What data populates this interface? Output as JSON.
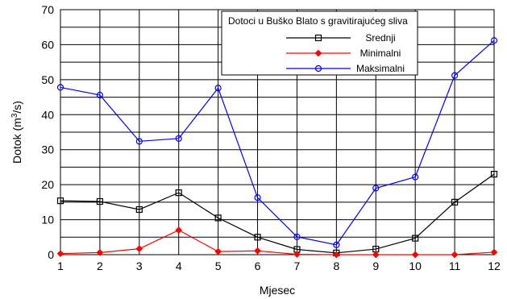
{
  "chart_data": {
    "type": "line",
    "title": "",
    "xlabel": "Mjesec",
    "ylabel_main": "Dotok (m",
    "ylabel_sup": "3",
    "ylabel_end": "/s)",
    "xlim": [
      1,
      12
    ],
    "ylim": [
      0,
      70
    ],
    "x": [
      1,
      2,
      3,
      4,
      5,
      6,
      7,
      8,
      9,
      10,
      11,
      12
    ],
    "x_ticks": [
      "1",
      "2",
      "3",
      "4",
      "5",
      "6",
      "7",
      "8",
      "9",
      "10",
      "11",
      "12"
    ],
    "y_ticks": [
      "0",
      "10",
      "20",
      "30",
      "40",
      "50",
      "60",
      "70"
    ],
    "grid": true,
    "legend": {
      "title": "Dotoci u Buško Blato s gravitirajućeg sliva",
      "placement": "top-right"
    },
    "series": [
      {
        "name": "Srednji",
        "color": "#000000",
        "marker": "square",
        "values": [
          15.4,
          15.2,
          12.9,
          17.7,
          10.5,
          5.0,
          1.5,
          0.5,
          1.6,
          4.7,
          15.0,
          23.0
        ]
      },
      {
        "name": "Minimalni",
        "color": "#ff0000",
        "marker": "diamond",
        "values": [
          0.3,
          0.6,
          1.7,
          7.0,
          0.9,
          1.1,
          0.1,
          0.0,
          0.0,
          0.0,
          0.0,
          0.7
        ]
      },
      {
        "name": "Maksimalni",
        "color": "#0000ff",
        "marker": "circle",
        "values": [
          47.8,
          45.6,
          32.4,
          33.2,
          47.6,
          16.3,
          5.1,
          2.8,
          19.0,
          22.2,
          51.2,
          61.2
        ]
      }
    ]
  }
}
